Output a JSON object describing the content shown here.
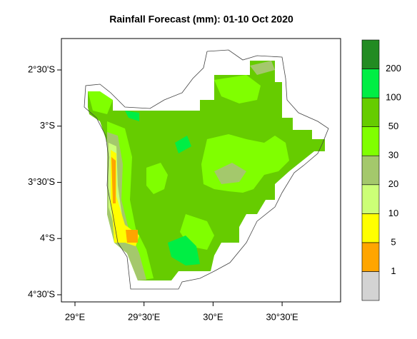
{
  "map": {
    "title": "Rainfall Forecast (mm): 01-10 Oct 2020",
    "lat_ticks": [
      "2°30'S",
      "3°S",
      "3°30'S",
      "4°S",
      "4°30'S"
    ],
    "lon_ticks": [
      "29°E",
      "29°30'E",
      "30°E",
      "30°30'E"
    ],
    "legend": {
      "levels": [
        "1",
        "5",
        "10",
        "20",
        "30",
        "50",
        "100",
        "200"
      ],
      "colors": [
        "#d3d3d3",
        "#ffa500",
        "#ffff00",
        "#ccff77",
        "#a4c86c",
        "#80ff00",
        "#66cc00",
        "#00ee44",
        "#228b22"
      ]
    }
  }
}
